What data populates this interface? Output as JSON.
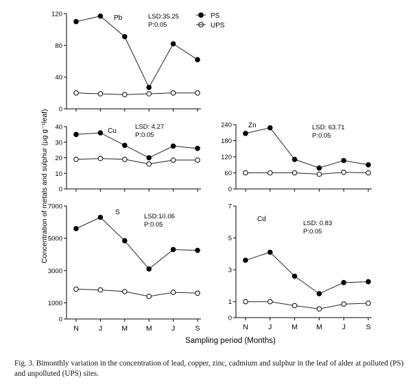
{
  "figure": {
    "y_axis_label": "Concentration of metals and sulphur (µg g⁻¹leaf)",
    "x_axis_label": "Sampling period (Months)",
    "caption": "Fig. 3. Bimonthly variation in the concentration of lead, copper, zinc, cadmium and sulphur in the leaf of alder at polluted (PS) and unpolluted (UPS) sites."
  },
  "legend": {
    "items": [
      {
        "label": "PS",
        "marker": "filled-circle"
      },
      {
        "label": "UPS",
        "marker": "open-circle"
      }
    ]
  },
  "colors": {
    "line": "#222222",
    "filled_marker": "#000000",
    "open_marker_fill": "#ffffff"
  },
  "chart_data": [
    {
      "type": "line",
      "panel": "Pb",
      "label": "Pb",
      "annotation": [
        "LSD:35.25",
        "P:0.05"
      ],
      "categories": [
        "N",
        "J",
        "M",
        "M",
        "J",
        "S"
      ],
      "ylim": [
        0,
        120
      ],
      "yticks": [
        0,
        40,
        80,
        120
      ],
      "grid": false,
      "legend_position": "top-right",
      "series": [
        {
          "name": "PS",
          "values": [
            110,
            117,
            91,
            27,
            82,
            62
          ]
        },
        {
          "name": "UPS",
          "values": [
            20,
            19,
            18,
            19,
            20,
            20
          ]
        }
      ]
    },
    {
      "type": "line",
      "panel": "Cu",
      "label": "Cu",
      "annotation": [
        "LSD: 4.27",
        "P:0.05"
      ],
      "categories": [
        "N",
        "J",
        "M",
        "M",
        "J",
        "S"
      ],
      "ylim": [
        0,
        40
      ],
      "yticks": [
        0,
        10,
        20,
        30,
        40
      ],
      "grid": false,
      "series": [
        {
          "name": "PS",
          "values": [
            35,
            36,
            28,
            20,
            27.5,
            26
          ]
        },
        {
          "name": "UPS",
          "values": [
            19,
            19.5,
            19,
            16,
            18.5,
            18.5
          ]
        }
      ]
    },
    {
      "type": "line",
      "panel": "Zn",
      "label": "Zn",
      "annotation": [
        "LSD: 63.71",
        "P:0.05"
      ],
      "categories": [
        "N",
        "J",
        "M",
        "M",
        "J",
        "S"
      ],
      "ylim": [
        0,
        240
      ],
      "yticks": [
        0,
        60,
        120,
        180,
        240
      ],
      "grid": false,
      "series": [
        {
          "name": "PS",
          "values": [
            207,
            228,
            110,
            78,
            106,
            90
          ]
        },
        {
          "name": "UPS",
          "values": [
            60,
            60,
            60,
            55,
            62,
            60
          ]
        }
      ]
    },
    {
      "type": "line",
      "panel": "S",
      "label": "S",
      "annotation": [
        "LSD:10.06",
        "P:0.05"
      ],
      "categories": [
        "N",
        "J",
        "M",
        "M",
        "J",
        "S"
      ],
      "ylim": [
        0,
        7000
      ],
      "yticks": [
        0,
        1000,
        3000,
        5000,
        7000
      ],
      "grid": false,
      "series": [
        {
          "name": "PS",
          "values": [
            5600,
            6300,
            4850,
            3100,
            4300,
            4250
          ]
        },
        {
          "name": "UPS",
          "values": [
            1850,
            1800,
            1700,
            1400,
            1650,
            1600
          ]
        }
      ]
    },
    {
      "type": "line",
      "panel": "Cd",
      "label": "Cd",
      "annotation": [
        "LSD: 0.83",
        "P:0.05"
      ],
      "categories": [
        "N",
        "J",
        "M",
        "M",
        "J",
        "S"
      ],
      "ylim": [
        0,
        7
      ],
      "yticks": [
        0,
        1,
        3,
        5,
        7
      ],
      "grid": false,
      "series": [
        {
          "name": "PS",
          "values": [
            3.6,
            4.1,
            2.6,
            1.5,
            2.2,
            2.25
          ]
        },
        {
          "name": "UPS",
          "values": [
            1.0,
            1.0,
            0.75,
            0.55,
            0.85,
            0.9
          ]
        }
      ]
    }
  ]
}
